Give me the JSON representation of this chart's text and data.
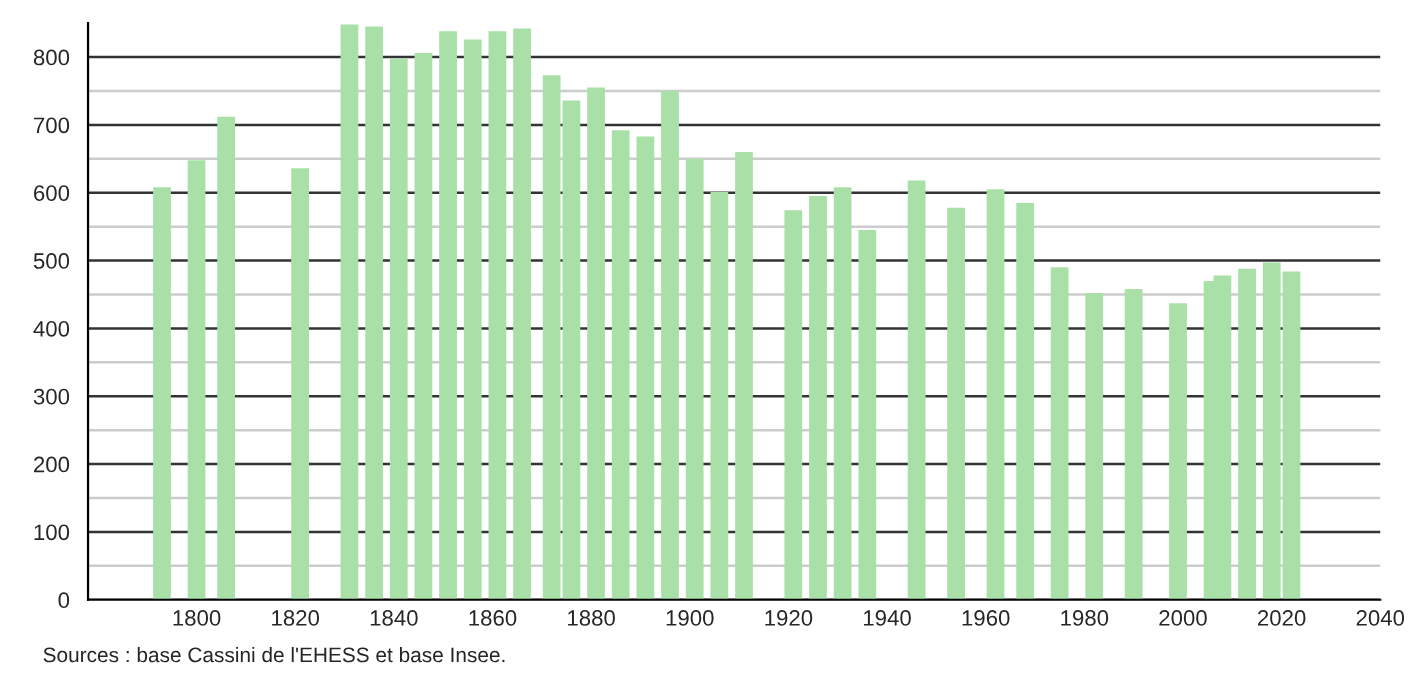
{
  "chart_data": {
    "type": "bar",
    "x": [
      1793,
      1800,
      1806,
      1821,
      1831,
      1836,
      1841,
      1846,
      1851,
      1856,
      1861,
      1866,
      1872,
      1876,
      1881,
      1886,
      1891,
      1896,
      1901,
      1906,
      1911,
      1921,
      1926,
      1931,
      1936,
      1946,
      1954,
      1962,
      1968,
      1975,
      1982,
      1990,
      1999,
      2006,
      2008,
      2013,
      2018,
      2022
    ],
    "values": [
      608,
      648,
      712,
      636,
      848,
      845,
      798,
      806,
      838,
      826,
      838,
      842,
      773,
      736,
      755,
      692,
      683,
      750,
      650,
      601,
      660,
      574,
      595,
      608,
      545,
      618,
      578,
      605,
      585,
      490,
      452,
      458,
      437,
      470,
      478,
      488,
      497,
      484
    ],
    "color": "#a8e0a8",
    "xlim": [
      1778,
      2040
    ],
    "xticks": [
      1800,
      1820,
      1840,
      1860,
      1880,
      1900,
      1920,
      1940,
      1960,
      1980,
      2000,
      2020,
      2040
    ],
    "ylim": [
      0,
      850
    ],
    "yticks": [
      0,
      {
        "value": 50,
        "label": null
      },
      100,
      {
        "value": 150,
        "label": null
      },
      200,
      {
        "value": 250,
        "label": null
      },
      300,
      {
        "value": 350,
        "label": null
      },
      400,
      {
        "value": 450,
        "label": null
      },
      500,
      {
        "value": 550,
        "label": null
      },
      600,
      {
        "value": 650,
        "label": null
      },
      700,
      {
        "value": 750,
        "label": null
      },
      800
    ],
    "grid": "y",
    "annotations": [
      "Sources : base Cassini de l'EHESS et base Insee."
    ]
  }
}
